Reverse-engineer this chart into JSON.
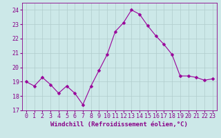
{
  "x": [
    0,
    1,
    2,
    3,
    4,
    5,
    6,
    7,
    8,
    9,
    10,
    11,
    12,
    13,
    14,
    15,
    16,
    17,
    18,
    19,
    20,
    21,
    22,
    23
  ],
  "y": [
    19.0,
    18.7,
    19.3,
    18.8,
    18.2,
    18.7,
    18.2,
    17.4,
    18.7,
    19.8,
    20.9,
    22.5,
    23.1,
    24.0,
    23.7,
    22.9,
    22.2,
    21.6,
    20.9,
    19.4,
    19.4,
    19.3,
    19.1,
    19.2
  ],
  "line_color": "#990099",
  "marker": "D",
  "marker_size": 2.5,
  "bg_color": "#cce8e8",
  "grid_color": "#b0cccc",
  "xlabel": "Windchill (Refroidissement éolien,°C)",
  "xlim": [
    -0.5,
    23.5
  ],
  "ylim": [
    17,
    24.5
  ],
  "yticks": [
    17,
    18,
    19,
    20,
    21,
    22,
    23,
    24
  ],
  "xticks": [
    0,
    1,
    2,
    3,
    4,
    5,
    6,
    7,
    8,
    9,
    10,
    11,
    12,
    13,
    14,
    15,
    16,
    17,
    18,
    19,
    20,
    21,
    22,
    23
  ],
  "xlabel_fontsize": 6.5,
  "tick_fontsize": 6.0,
  "label_color": "#880088"
}
